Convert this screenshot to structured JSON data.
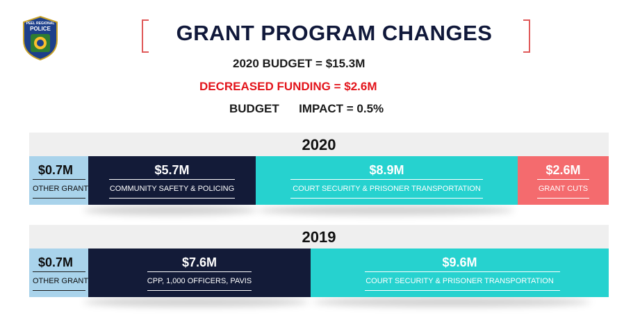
{
  "logo": {
    "line1": "PEEL REGIONAL",
    "line2": "POLICE"
  },
  "header": {
    "title": "GRANT  PROGRAM CHANGES",
    "budget_line": "2020 BUDGET = $15.3M",
    "decrease_line": "DECREASED FUNDING = $2.6M",
    "impact_line": "BUDGET      IMPACT = 0.5%"
  },
  "colors": {
    "accent_red": "#e3141b",
    "navy": "#131b38",
    "teal": "#26d2cf",
    "light_blue": "#a9d3eb",
    "coral": "#f46b6e"
  },
  "years": [
    {
      "year": "2020",
      "segments": [
        {
          "amount": "$0.7M",
          "label": "OTHER  GRANTS"
        },
        {
          "amount": "$5.7M",
          "label": "COMMUNITY SAFETY & POLICING"
        },
        {
          "amount": "$8.9M",
          "label": "COURT SECURITY & PRISONER TRANSPORTATION"
        },
        {
          "amount": "$2.6M",
          "label": "GRANT CUTS"
        }
      ]
    },
    {
      "year": "2019",
      "segments": [
        {
          "amount": "$0.7M",
          "label": "OTHER  GRANTS"
        },
        {
          "amount": "$7.6M",
          "label": "CPP, 1,000 OFFICERS, PAVIS"
        },
        {
          "amount": "$9.6M",
          "label": "COURT SECURITY & PRISONER TRANSPORTATION"
        }
      ]
    }
  ]
}
